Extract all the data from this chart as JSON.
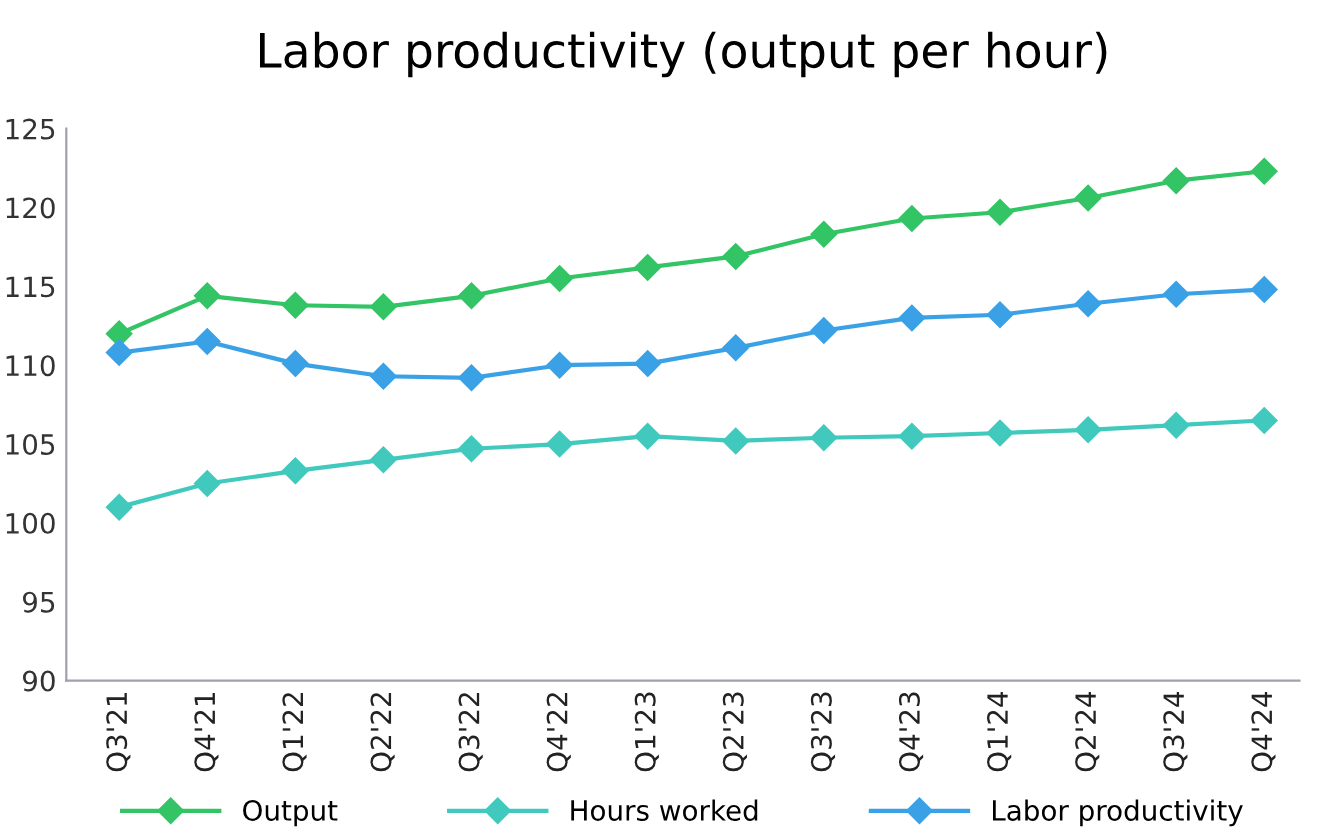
{
  "chart_data": {
    "type": "line",
    "title": "Labor productivity (output per hour)",
    "categories": [
      "Q3'21",
      "Q4'21",
      "Q1'22",
      "Q2'22",
      "Q3'22",
      "Q4'22",
      "Q1'23",
      "Q2'23",
      "Q3'23",
      "Q4'23",
      "Q1'24",
      "Q2'24",
      "Q3'24",
      "Q4'24"
    ],
    "series": [
      {
        "name": "Output",
        "color": "#33c466",
        "values": [
          112,
          114.4,
          113.8,
          113.7,
          114.4,
          115.5,
          116.2,
          116.9,
          118.3,
          119.3,
          119.7,
          120.6,
          121.7,
          122.3
        ]
      },
      {
        "name": "Hours worked",
        "color": "#40c9bc",
        "values": [
          101,
          102.5,
          103.3,
          104,
          104.7,
          105,
          105.5,
          105.2,
          105.4,
          105.5,
          105.7,
          105.9,
          106.2,
          106.5
        ]
      },
      {
        "name": "Labor productivity",
        "color": "#3aa1e6",
        "values": [
          110.8,
          111.5,
          110.1,
          109.3,
          109.2,
          110,
          110.1,
          111.1,
          112.2,
          113,
          113.2,
          113.9,
          114.5,
          114.8
        ]
      }
    ],
    "ylim": [
      90,
      125
    ],
    "yticks": [
      90,
      95,
      100,
      105,
      110,
      115,
      120,
      125
    ],
    "grid": false,
    "legend": "bottom",
    "marker": "diamond",
    "line_style": "solid"
  }
}
